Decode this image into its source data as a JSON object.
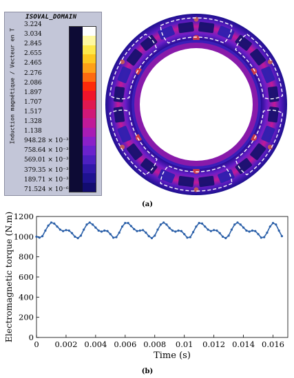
{
  "panel_a": {
    "legend_title": "ISOVAL_DOMAIN",
    "legend_ylabel": "Induction magnétique / Vecteur en T",
    "legend_labels": [
      "3.224",
      "3.034",
      "2.845",
      "2.655",
      "2.465",
      "2.276",
      "2.086",
      "1.897",
      "1.707",
      "1.517",
      "1.328",
      "1.138",
      "948.28 × 10⁻³",
      "758.64 × 10⁻³",
      "569.01 × 10⁻³",
      "379.35 × 10⁻³",
      "189.71 × 10⁻³",
      "71.524 × 10⁻⁶"
    ],
    "legend_colors": [
      "#ffffff",
      "#fff8a0",
      "#ffe84a",
      "#ffc820",
      "#ffa018",
      "#ff6a10",
      "#ff2a0a",
      "#f0142a",
      "#e01850",
      "#d01878",
      "#c01a98",
      "#a81cb4",
      "#8a20c8",
      "#6a22cc",
      "#4c20c0",
      "#3018a8",
      "#1e1290",
      "#120c70"
    ],
    "caption": "(a)"
  },
  "panel_b": {
    "caption": "(b)"
  },
  "chart_data": {
    "type": "line",
    "xlabel": "Time  (s)",
    "ylabel": "Electromagnetic torque  (N.m)",
    "xlim": [
      0,
      0.017
    ],
    "ylim": [
      0,
      1200
    ],
    "xticks": [
      "0",
      "0.002",
      "0.004",
      "0.006",
      "0.008",
      "0.01",
      "0.012",
      "0.014",
      "0.016"
    ],
    "yticks": [
      "0",
      "200",
      "400",
      "600",
      "800",
      "1000",
      "1200"
    ],
    "grid": true,
    "series_color": "#2a5fa8",
    "series": [
      {
        "x": [
          0,
          0.0002,
          0.0004,
          0.0006,
          0.0008,
          0.001,
          0.0012,
          0.0014,
          0.0016,
          0.0018,
          0.002,
          0.0022,
          0.0024,
          0.0026,
          0.0028,
          0.003,
          0.0032,
          0.0034,
          0.0036,
          0.0038,
          0.004,
          0.0042,
          0.0044,
          0.0046,
          0.0048,
          0.005,
          0.0052,
          0.0054,
          0.0056,
          0.0058,
          0.006,
          0.0062,
          0.0064,
          0.0066,
          0.0068,
          0.007,
          0.0072,
          0.0074,
          0.0076,
          0.0078,
          0.008,
          0.0082,
          0.0084,
          0.0086,
          0.0088,
          0.009,
          0.0092,
          0.0094,
          0.0096,
          0.0098,
          0.01,
          0.0102,
          0.0104,
          0.0106,
          0.0108,
          0.011,
          0.0112,
          0.0114,
          0.0116,
          0.0118,
          0.012,
          0.0122,
          0.0124,
          0.0126,
          0.0128,
          0.013,
          0.0132,
          0.0134,
          0.0136,
          0.0138,
          0.014,
          0.0142,
          0.0144,
          0.0146,
          0.0148,
          0.015,
          0.0152,
          0.0154,
          0.0156,
          0.0158,
          0.016,
          0.0162,
          0.0164,
          0.0166
        ],
        "values": [
          1000,
          990,
          1005,
          1060,
          1110,
          1140,
          1130,
          1100,
          1070,
          1055,
          1065,
          1060,
          1035,
          1000,
          985,
          1010,
          1070,
          1120,
          1140,
          1120,
          1090,
          1060,
          1050,
          1060,
          1055,
          1025,
          990,
          995,
          1040,
          1100,
          1135,
          1135,
          1105,
          1075,
          1055,
          1060,
          1065,
          1040,
          1005,
          985,
          1010,
          1070,
          1120,
          1140,
          1120,
          1085,
          1060,
          1050,
          1060,
          1055,
          1025,
          990,
          995,
          1045,
          1100,
          1135,
          1130,
          1100,
          1070,
          1055,
          1065,
          1060,
          1035,
          1000,
          985,
          1010,
          1070,
          1120,
          1140,
          1120,
          1090,
          1060,
          1050,
          1060,
          1055,
          1025,
          990,
          995,
          1040,
          1100,
          1135,
          1120,
          1060,
          1005
        ]
      }
    ]
  }
}
